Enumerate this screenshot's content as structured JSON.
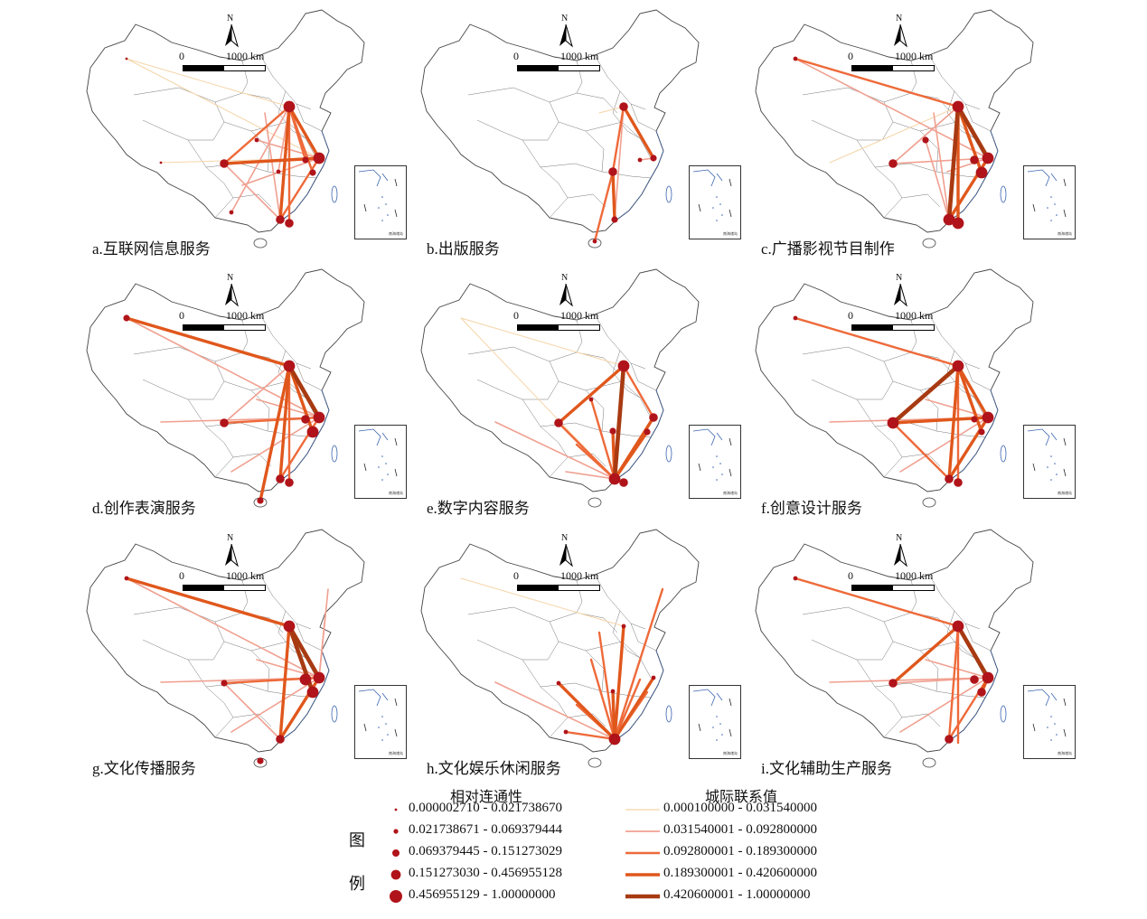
{
  "panels": [
    {
      "id": "a",
      "label": "a.互联网信息服务"
    },
    {
      "id": "b",
      "label": "b.出版服务"
    },
    {
      "id": "c",
      "label": "c.广播影视节目制作"
    },
    {
      "id": "d",
      "label": "d.创作表演服务"
    },
    {
      "id": "e",
      "label": "e.数字内容服务"
    },
    {
      "id": "f",
      "label": "f.创意设计服务"
    },
    {
      "id": "g",
      "label": "g.文化传播服务"
    },
    {
      "id": "h",
      "label": "h.文化娱乐休闲服务"
    },
    {
      "id": "i",
      "label": "i.文化辅助生产服务"
    }
  ],
  "map_common": {
    "north_letter": "N",
    "scale_zero": "0",
    "scale_end": "1000 km",
    "inset_label": "南海诸岛"
  },
  "legend": {
    "side_char_1": "图",
    "side_char_2": "例",
    "node_title": "相对连通性",
    "link_title": "城际联系值",
    "node_classes": [
      "0.000002710 - 0.021738670",
      "0.021738671 - 0.069379444",
      "0.069379445 - 0.151273029",
      "0.151273030 - 0.456955128",
      "0.456955129 - 1.00000000"
    ],
    "link_classes": [
      "0.000100000 - 0.031540000",
      "0.031540001 - 0.092800000",
      "0.092800001 - 0.189300000",
      "0.189300001 - 0.420600000",
      "0.420600001 - 1.00000000"
    ],
    "colors": {
      "node": "#b0141a",
      "link_classes": [
        "#f5d5a8",
        "#f0a090",
        "#ee6a3a",
        "#e0571c",
        "#a83a12"
      ],
      "boundary": "#444444",
      "coast": "#3a64b0"
    }
  }
}
